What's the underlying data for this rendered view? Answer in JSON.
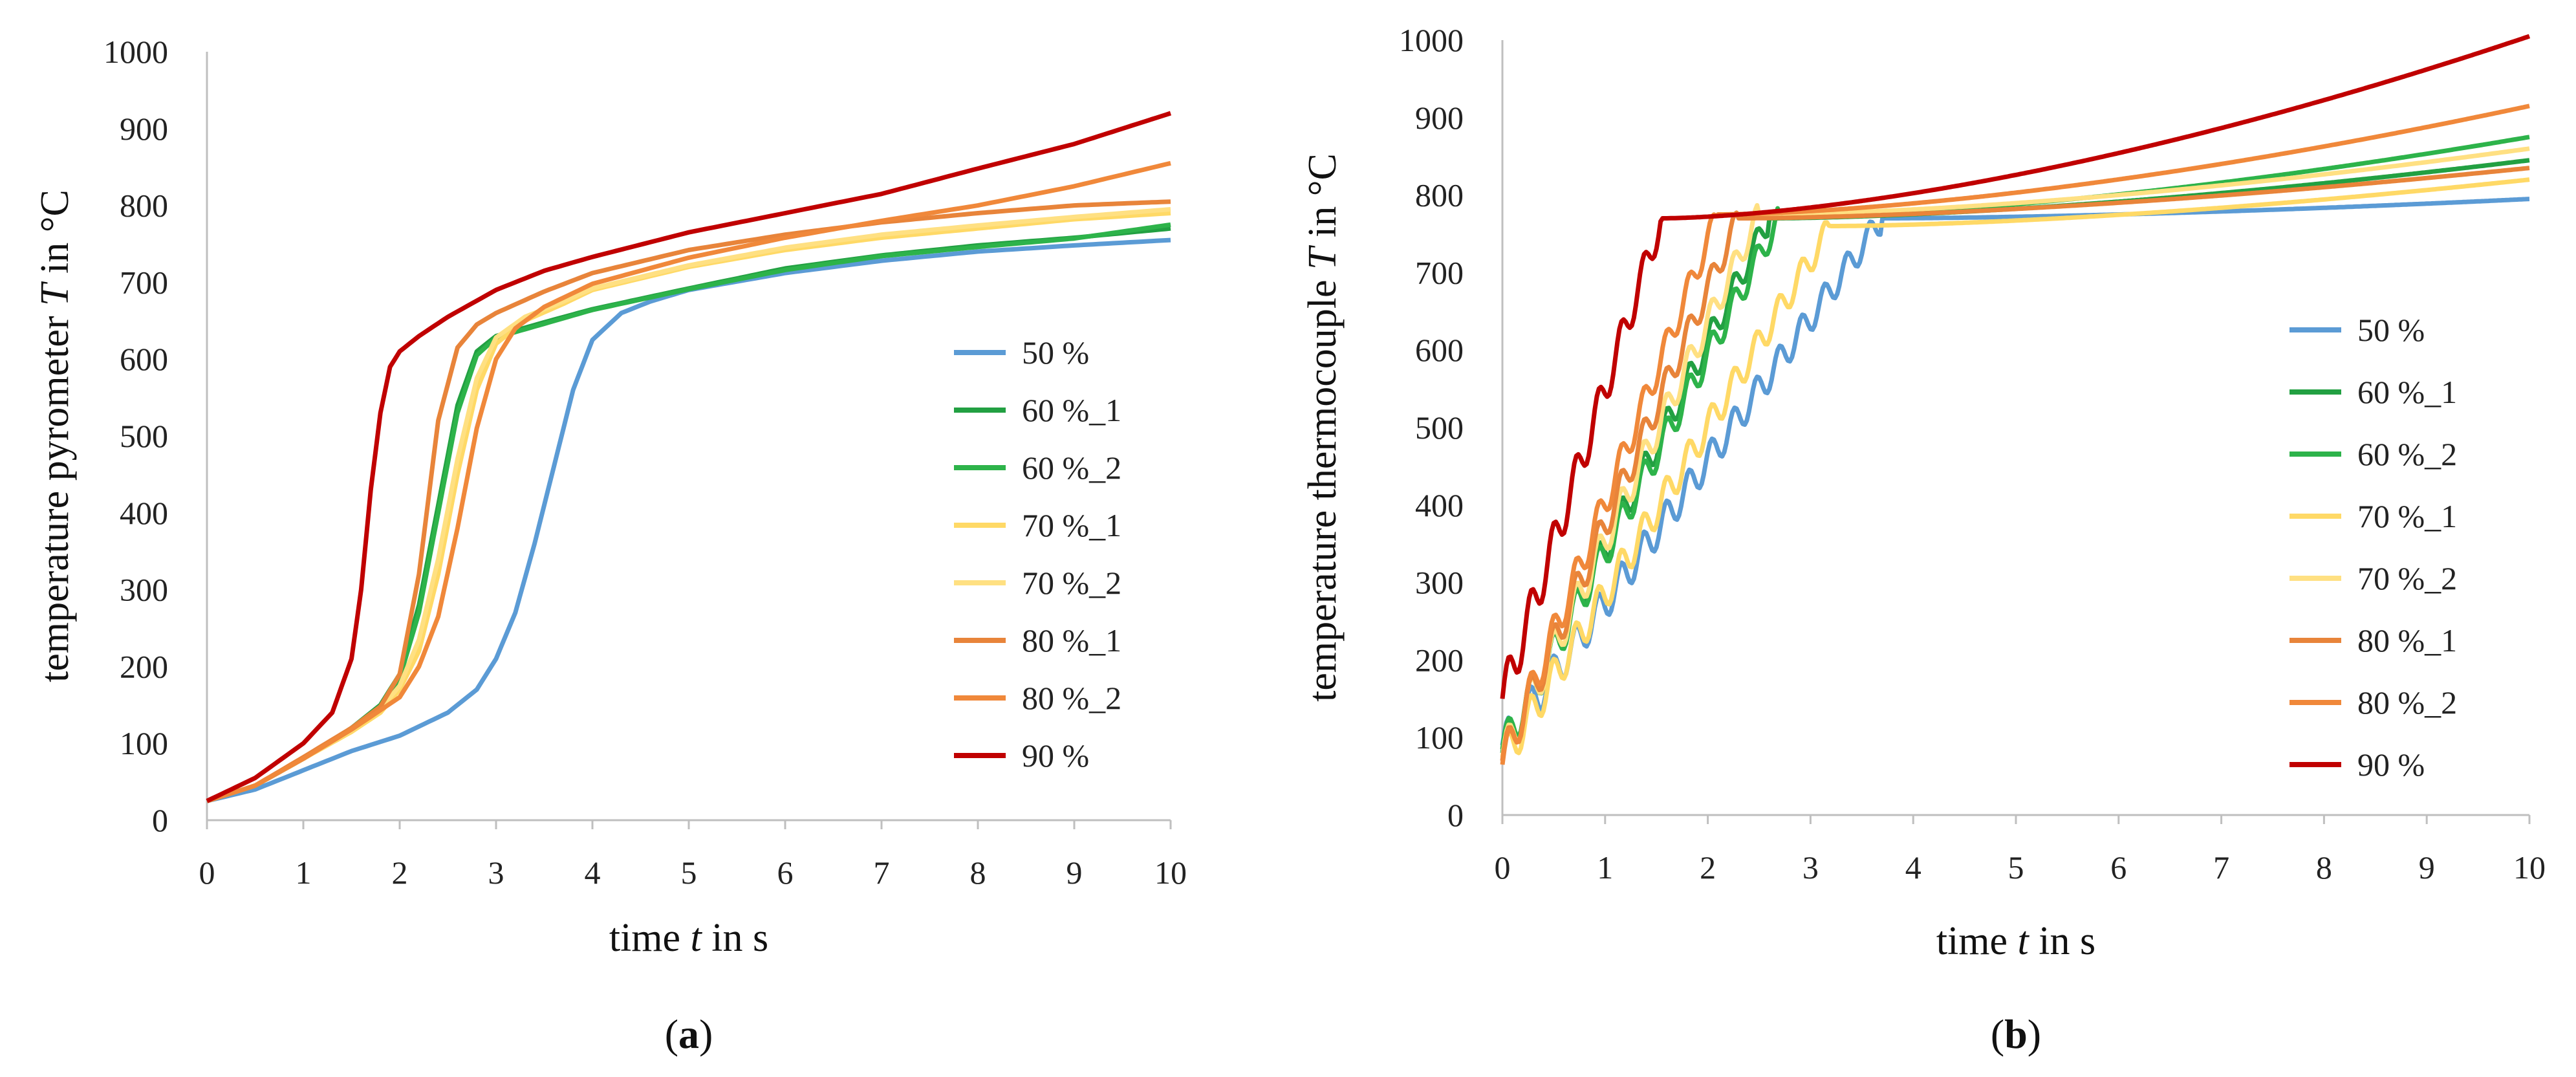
{
  "series_colors": {
    "50 %": "#5b9bd5",
    "60 %_1": "#22a042",
    "60 %_2": "#2db34a",
    "70 %_1": "#ffd966",
    "70 %_2": "#ffe082",
    "80 %_1": "#e8843a",
    "80 %_2": "#f0883a",
    "90 %": "#c00000"
  },
  "chart_data": [
    {
      "type": "line",
      "id": "a",
      "caption_letter": "a",
      "ylabel_pre": "temperature pyrometer ",
      "ylabel_var": "T",
      "ylabel_post": " in °C",
      "xlabel_pre": "time ",
      "xlabel_var": "t",
      "xlabel_post": " in s",
      "xlim": [
        0,
        10
      ],
      "ylim": [
        0,
        1000
      ],
      "xticks": [
        "0",
        "1",
        "2",
        "3",
        "4",
        "5",
        "6",
        "7",
        "8",
        "9",
        "10"
      ],
      "yticks": [
        "0",
        "100",
        "200",
        "300",
        "400",
        "500",
        "600",
        "700",
        "800",
        "900",
        "1000"
      ],
      "legend": [
        "50 %",
        "60 %_1",
        "60 %_2",
        "70 %_1",
        "70 %_2",
        "80 %_1",
        "80 %_2",
        "90 %"
      ],
      "series": [
        {
          "name": "50 %",
          "points": [
            [
              0,
              25
            ],
            [
              0.5,
              40
            ],
            [
              1,
              65
            ],
            [
              1.5,
              90
            ],
            [
              2,
              110
            ],
            [
              2.5,
              140
            ],
            [
              2.8,
              170
            ],
            [
              3,
              210
            ],
            [
              3.2,
              270
            ],
            [
              3.4,
              360
            ],
            [
              3.6,
              460
            ],
            [
              3.8,
              560
            ],
            [
              4,
              625
            ],
            [
              4.3,
              660
            ],
            [
              4.6,
              675
            ],
            [
              5,
              690
            ],
            [
              6,
              712
            ],
            [
              7,
              728
            ],
            [
              8,
              740
            ],
            [
              9,
              748
            ],
            [
              10,
              755
            ]
          ]
        },
        {
          "name": "60 %_1",
          "points": [
            [
              0,
              25
            ],
            [
              0.5,
              45
            ],
            [
              1,
              80
            ],
            [
              1.5,
              120
            ],
            [
              1.8,
              150
            ],
            [
              2,
              190
            ],
            [
              2.2,
              280
            ],
            [
              2.4,
              410
            ],
            [
              2.6,
              540
            ],
            [
              2.8,
              610
            ],
            [
              3,
              630
            ],
            [
              3.5,
              648
            ],
            [
              4,
              665
            ],
            [
              5,
              692
            ],
            [
              6,
              718
            ],
            [
              7,
              735
            ],
            [
              8,
              748
            ],
            [
              9,
              758
            ],
            [
              10,
              770
            ]
          ]
        },
        {
          "name": "60 %_2",
          "points": [
            [
              0,
              25
            ],
            [
              0.5,
              45
            ],
            [
              1,
              80
            ],
            [
              1.5,
              118
            ],
            [
              1.8,
              148
            ],
            [
              2,
              185
            ],
            [
              2.2,
              270
            ],
            [
              2.4,
              400
            ],
            [
              2.6,
              530
            ],
            [
              2.8,
              605
            ],
            [
              3,
              628
            ],
            [
              3.5,
              646
            ],
            [
              4,
              664
            ],
            [
              5,
              691
            ],
            [
              6,
              716
            ],
            [
              7,
              734
            ],
            [
              8,
              746
            ],
            [
              9,
              757
            ],
            [
              10,
              775
            ]
          ]
        },
        {
          "name": "70 %_1",
          "points": [
            [
              0,
              25
            ],
            [
              0.5,
              45
            ],
            [
              1,
              80
            ],
            [
              1.5,
              115
            ],
            [
              1.8,
              140
            ],
            [
              2,
              170
            ],
            [
              2.2,
              220
            ],
            [
              2.4,
              320
            ],
            [
              2.6,
              450
            ],
            [
              2.8,
              560
            ],
            [
              3,
              620
            ],
            [
              3.3,
              650
            ],
            [
              3.7,
              672
            ],
            [
              4,
              690
            ],
            [
              5,
              720
            ],
            [
              6,
              742
            ],
            [
              7,
              758
            ],
            [
              8,
              770
            ],
            [
              9,
              782
            ],
            [
              10,
              790
            ]
          ]
        },
        {
          "name": "70 %_2",
          "points": [
            [
              0,
              25
            ],
            [
              0.5,
              45
            ],
            [
              1,
              80
            ],
            [
              1.5,
              117
            ],
            [
              1.8,
              145
            ],
            [
              2,
              175
            ],
            [
              2.2,
              235
            ],
            [
              2.4,
              340
            ],
            [
              2.6,
              470
            ],
            [
              2.8,
              575
            ],
            [
              3,
              628
            ],
            [
              3.3,
              655
            ],
            [
              3.7,
              675
            ],
            [
              4,
              692
            ],
            [
              5,
              722
            ],
            [
              6,
              745
            ],
            [
              7,
              762
            ],
            [
              8,
              774
            ],
            [
              9,
              785
            ],
            [
              10,
              795
            ]
          ]
        },
        {
          "name": "80 %_1",
          "points": [
            [
              0,
              25
            ],
            [
              0.5,
              45
            ],
            [
              1,
              82
            ],
            [
              1.5,
              120
            ],
            [
              1.8,
              148
            ],
            [
              2,
              190
            ],
            [
              2.2,
              320
            ],
            [
              2.4,
              520
            ],
            [
              2.6,
              615
            ],
            [
              2.8,
              645
            ],
            [
              3,
              660
            ],
            [
              3.5,
              688
            ],
            [
              4,
              712
            ],
            [
              5,
              742
            ],
            [
              6,
              762
            ],
            [
              7,
              778
            ],
            [
              8,
              790
            ],
            [
              9,
              800
            ],
            [
              10,
              805
            ]
          ]
        },
        {
          "name": "80 %_2",
          "points": [
            [
              0,
              25
            ],
            [
              0.5,
              45
            ],
            [
              1,
              80
            ],
            [
              1.5,
              118
            ],
            [
              2,
              160
            ],
            [
              2.2,
              200
            ],
            [
              2.4,
              265
            ],
            [
              2.6,
              380
            ],
            [
              2.8,
              510
            ],
            [
              3,
              600
            ],
            [
              3.2,
              640
            ],
            [
              3.5,
              668
            ],
            [
              4,
              698
            ],
            [
              5,
              732
            ],
            [
              6,
              758
            ],
            [
              7,
              780
            ],
            [
              8,
              800
            ],
            [
              9,
              825
            ],
            [
              10,
              855
            ]
          ]
        },
        {
          "name": "90 %",
          "points": [
            [
              0,
              25
            ],
            [
              0.5,
              55
            ],
            [
              1,
              100
            ],
            [
              1.3,
              140
            ],
            [
              1.5,
              210
            ],
            [
              1.6,
              300
            ],
            [
              1.7,
              430
            ],
            [
              1.8,
              530
            ],
            [
              1.9,
              590
            ],
            [
              2,
              610
            ],
            [
              2.2,
              630
            ],
            [
              2.5,
              655
            ],
            [
              3,
              690
            ],
            [
              3.5,
              715
            ],
            [
              4,
              733
            ],
            [
              5,
              765
            ],
            [
              6,
              790
            ],
            [
              7,
              815
            ],
            [
              8,
              848
            ],
            [
              9,
              880
            ],
            [
              10,
              920
            ]
          ]
        }
      ]
    },
    {
      "type": "line",
      "id": "b",
      "caption_letter": "b",
      "ylabel_pre": "temperature thermocouple ",
      "ylabel_var": "T",
      "ylabel_post": " in °C",
      "xlabel_pre": "time ",
      "xlabel_var": "t",
      "xlabel_post": " in s",
      "xlim": [
        0,
        10
      ],
      "ylim": [
        0,
        1000
      ],
      "xticks": [
        "0",
        "1",
        "2",
        "3",
        "4",
        "5",
        "6",
        "7",
        "8",
        "9",
        "10"
      ],
      "yticks": [
        "0",
        "100",
        "200",
        "300",
        "400",
        "500",
        "600",
        "700",
        "800",
        "900",
        "1000"
      ],
      "legend": [
        "50 %",
        "60 %_1",
        "60 %_2",
        "70 %_1",
        "70 %_2",
        "80 %_1",
        "80 %_2",
        "90 %"
      ],
      "series": [
        {
          "name": "50 %",
          "start": 90,
          "rise_end_t": 3.7,
          "plateau": 770,
          "end": 795,
          "wave": 25
        },
        {
          "name": "60 %_1",
          "start": 80,
          "rise_end_t": 2.6,
          "plateau": 770,
          "end": 845,
          "wave": 25
        },
        {
          "name": "60 %_2",
          "start": 85,
          "rise_end_t": 2.7,
          "plateau": 772,
          "end": 875,
          "wave": 25
        },
        {
          "name": "70 %_1",
          "start": 70,
          "rise_end_t": 3.2,
          "plateau": 760,
          "end": 820,
          "wave": 25
        },
        {
          "name": "70 %_2",
          "start": 75,
          "rise_end_t": 2.5,
          "plateau": 775,
          "end": 860,
          "wave": 25
        },
        {
          "name": "80 %_1",
          "start": 70,
          "rise_end_t": 2.3,
          "plateau": 770,
          "end": 835,
          "wave": 25
        },
        {
          "name": "80 %_2",
          "start": 65,
          "rise_end_t": 2.1,
          "plateau": 775,
          "end": 915,
          "wave": 25
        },
        {
          "name": "90 %",
          "start": 150,
          "rise_end_t": 1.55,
          "plateau": 770,
          "end": 1005,
          "wave": 30
        }
      ]
    }
  ]
}
